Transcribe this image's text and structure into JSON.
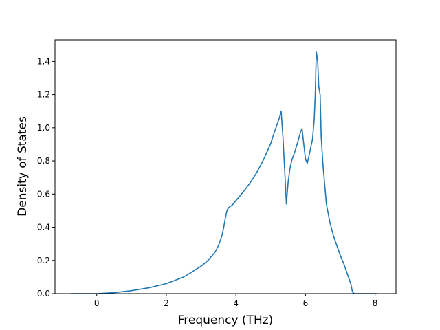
{
  "chart_data": {
    "type": "line",
    "title": "",
    "xlabel": "Frequency (THz)",
    "ylabel": "Density of States",
    "xlim": [
      -1.2,
      8.6
    ],
    "ylim": [
      0.0,
      1.53
    ],
    "xticks": [
      0,
      2,
      4,
      6,
      8
    ],
    "yticks": [
      0.0,
      0.2,
      0.4,
      0.6,
      0.8,
      1.0,
      1.2,
      1.4
    ],
    "xtick_labels": [
      "0",
      "2",
      "4",
      "6",
      "8"
    ],
    "ytick_labels": [
      "0.0",
      "0.2",
      "0.4",
      "0.6",
      "0.8",
      "1.0",
      "1.2",
      "1.4"
    ],
    "grid": false,
    "legend": "none",
    "line_color": "#1f77b4",
    "series": [
      {
        "x": [
          -0.75,
          -0.5,
          0.0,
          0.5,
          1.0,
          1.5,
          2.0,
          2.5,
          3.0,
          3.2,
          3.4,
          3.5,
          3.6,
          3.65,
          3.7,
          3.75,
          3.8,
          3.9,
          4.0,
          4.2,
          4.4,
          4.6,
          4.8,
          5.0,
          5.1,
          5.2,
          5.25,
          5.3,
          5.35,
          5.4,
          5.45,
          5.5,
          5.55,
          5.6,
          5.7,
          5.8,
          5.85,
          5.9,
          5.95,
          6.0,
          6.05,
          6.1,
          6.15,
          6.2,
          6.25,
          6.28,
          6.31,
          6.35,
          6.38,
          6.42,
          6.45,
          6.5,
          6.55,
          6.6,
          6.7,
          6.8,
          6.9,
          7.0,
          7.1,
          7.2,
          7.3,
          7.35,
          7.4,
          7.45,
          7.6,
          8.05
        ],
        "y": [
          0.0,
          0.0,
          0.0,
          0.006,
          0.018,
          0.035,
          0.06,
          0.1,
          0.165,
          0.2,
          0.25,
          0.29,
          0.35,
          0.4,
          0.46,
          0.505,
          0.52,
          0.535,
          0.56,
          0.61,
          0.665,
          0.73,
          0.81,
          0.905,
          0.97,
          1.03,
          1.06,
          1.1,
          0.95,
          0.75,
          0.54,
          0.67,
          0.75,
          0.8,
          0.86,
          0.93,
          0.97,
          0.995,
          0.9,
          0.81,
          0.785,
          0.83,
          0.88,
          0.93,
          1.05,
          1.2,
          1.46,
          1.4,
          1.25,
          1.2,
          0.95,
          0.78,
          0.66,
          0.54,
          0.43,
          0.35,
          0.29,
          0.23,
          0.18,
          0.12,
          0.06,
          0.01,
          0.0,
          0.0,
          0.0,
          0.0
        ]
      }
    ]
  }
}
